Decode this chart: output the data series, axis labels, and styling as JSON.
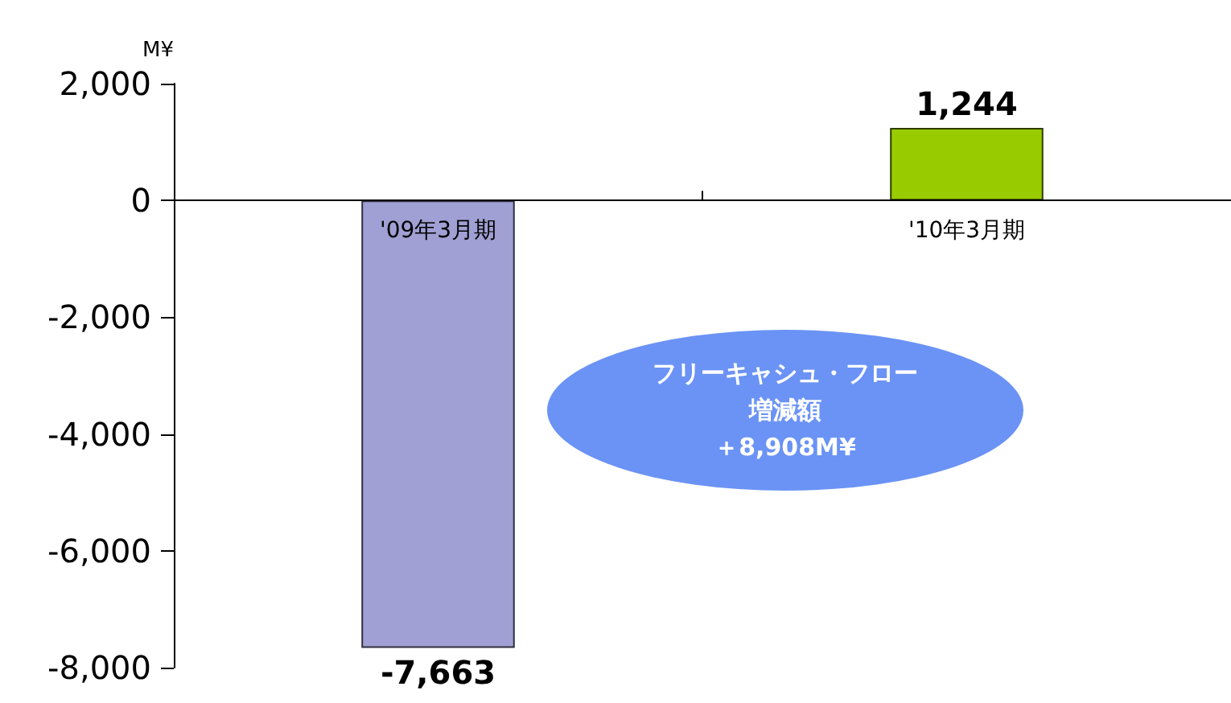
{
  "chart_data": {
    "type": "bar",
    "ylabel": "M¥",
    "categories": [
      "'09年3月期",
      "'10年3月期"
    ],
    "values": [
      -7663,
      1244
    ],
    "value_labels": [
      "-7,663",
      "1,244"
    ],
    "colors": [
      "#a0a0d4",
      "#99cc00"
    ],
    "ylim": [
      -8000,
      2000
    ],
    "yticks": [
      {
        "value": -8000,
        "label": "-8,000"
      },
      {
        "value": -6000,
        "label": "-6,000"
      },
      {
        "value": -4000,
        "label": "-4,000"
      },
      {
        "value": -2000,
        "label": "-2,000"
      },
      0,
      {
        "value": 2000,
        "label": "2,000"
      }
    ],
    "annotations": [
      "フリーキャシュ・フロー",
      "増減額",
      "＋8,908M¥"
    ]
  }
}
